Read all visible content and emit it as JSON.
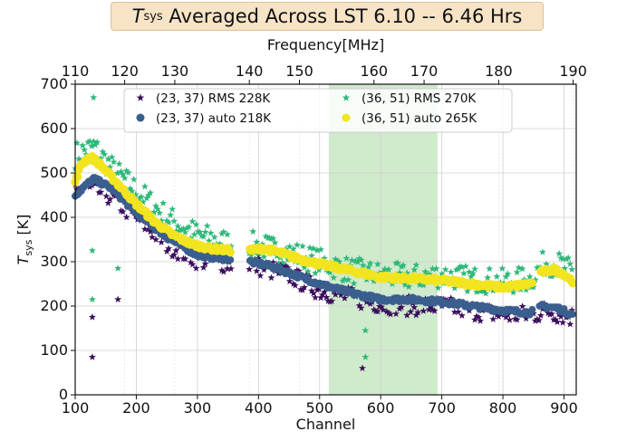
{
  "chart_data": {
    "type": "scatter",
    "title": {
      "symbol": "T",
      "subscript": "sys",
      "text": " Averaged Across LST 6.10 -- 6.46 Hrs"
    },
    "xlabel": "Channel",
    "ylabel": {
      "symbol": "T",
      "subscript": "sys",
      "unit": " [K]"
    },
    "x2label": "Frequency[MHz]",
    "xlim": [
      100,
      920
    ],
    "ylim": [
      0,
      700
    ],
    "x_ticks": [
      100,
      200,
      300,
      400,
      500,
      600,
      700,
      800,
      900
    ],
    "y_ticks": [
      0,
      100,
      200,
      300,
      400,
      500,
      600,
      700
    ],
    "x2_ticks": [
      110,
      120,
      130,
      140,
      150,
      160,
      170,
      180,
      190
    ],
    "x2_tick_channels": [
      100,
      181,
      263,
      385,
      467,
      589,
      671,
      793,
      915
    ],
    "shaded_region": {
      "x": [
        515,
        693
      ],
      "color": "#c8e6c3"
    },
    "gap": [
      355,
      385
    ],
    "grid": true,
    "legend_position": "top-center",
    "series": [
      {
        "name": "(23, 37) RMS 228K",
        "marker": "star",
        "color": "#3b0f5c",
        "x": [
          100,
          150,
          200,
          250,
          300,
          355,
          385,
          450,
          500,
          550,
          600,
          650,
          700,
          750,
          800,
          850,
          870,
          900,
          915
        ],
        "y": [
          470,
          455,
          400,
          340,
          305,
          295,
          295,
          270,
          235,
          220,
          205,
          200,
          200,
          190,
          180,
          180,
          190,
          180,
          175
        ]
      },
      {
        "name": "(23, 37) auto 218K",
        "marker": "circle",
        "color": "#3a5f8f",
        "x": [
          100,
          130,
          160,
          200,
          250,
          300,
          355,
          385,
          420,
          450,
          500,
          550,
          600,
          650,
          700,
          750,
          800,
          845,
          865,
          890,
          915
        ],
        "y": [
          450,
          487,
          465,
          410,
          355,
          315,
          305,
          300,
          290,
          275,
          250,
          230,
          215,
          215,
          210,
          200,
          190,
          185,
          200,
          195,
          180
        ]
      },
      {
        "name": "(36, 51) RMS 270K",
        "marker": "star",
        "color": "#2eb87a",
        "x": [
          100,
          130,
          160,
          200,
          250,
          300,
          355,
          385,
          450,
          500,
          550,
          600,
          650,
          700,
          750,
          800,
          845,
          870,
          900,
          915
        ],
        "y": [
          540,
          560,
          510,
          460,
          400,
          360,
          340,
          340,
          320,
          300,
          280,
          270,
          265,
          270,
          260,
          255,
          260,
          300,
          290,
          270
        ]
      },
      {
        "name": "(36, 51) auto 265K",
        "marker": "circle",
        "color": "#f2e41f",
        "x": [
          100,
          110,
          125,
          140,
          170,
          200,
          230,
          260,
          290,
          320,
          355,
          385,
          410,
          435,
          470,
          500,
          550,
          600,
          650,
          700,
          750,
          800,
          845,
          865,
          885,
          900,
          915
        ],
        "y": [
          480,
          520,
          537,
          520,
          475,
          430,
          390,
          360,
          340,
          330,
          325,
          325,
          330,
          320,
          305,
          295,
          280,
          265,
          262,
          258,
          250,
          242,
          250,
          278,
          282,
          272,
          255
        ]
      }
    ],
    "outliers": [
      {
        "series": 0,
        "x": 128,
        "y": 85
      },
      {
        "series": 0,
        "x": 128,
        "y": 175
      },
      {
        "series": 0,
        "x": 170,
        "y": 215
      },
      {
        "series": 0,
        "x": 570,
        "y": 60
      },
      {
        "series": 2,
        "x": 128,
        "y": 215
      },
      {
        "series": 2,
        "x": 128,
        "y": 325
      },
      {
        "series": 2,
        "x": 130,
        "y": 670
      },
      {
        "series": 2,
        "x": 170,
        "y": 285
      },
      {
        "series": 2,
        "x": 575,
        "y": 145
      },
      {
        "series": 2,
        "x": 575,
        "y": 85
      }
    ]
  }
}
